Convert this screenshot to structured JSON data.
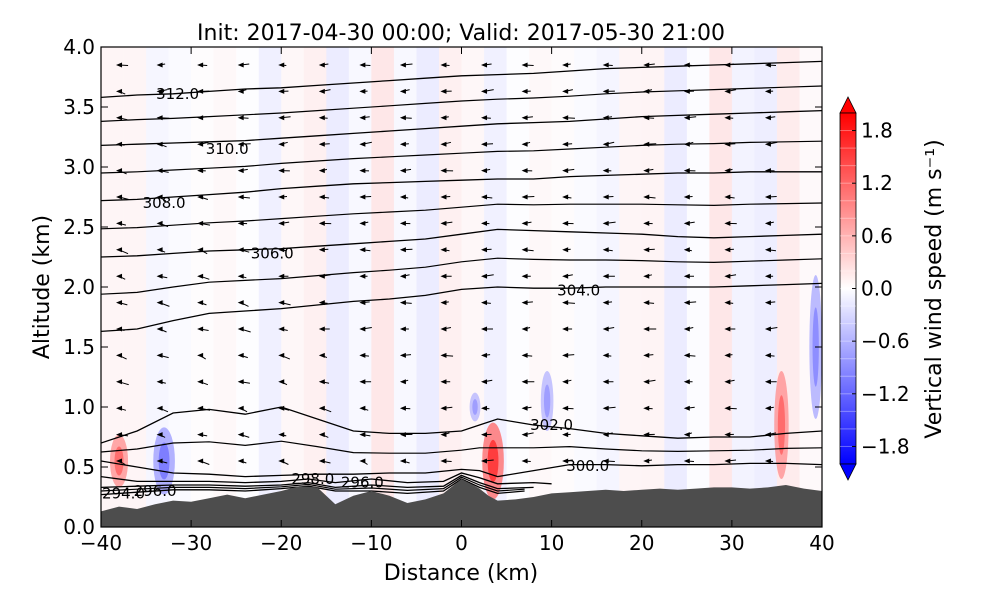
{
  "chart_data": {
    "type": "contour-cross-section",
    "title": "Init: 2017-04-30 00:00; Valid: 2017-05-30 21:00",
    "xlabel": "Distance (km)",
    "ylabel": "Altitude (km)",
    "xlim": [
      -40,
      40
    ],
    "ylim": [
      0.0,
      4.0
    ],
    "xticks": [
      -40,
      -30,
      -20,
      -10,
      0,
      10,
      20,
      30,
      40
    ],
    "xtick_labels": [
      "−40",
      "−30",
      "−20",
      "−10",
      "0",
      "10",
      "20",
      "30",
      "40"
    ],
    "yticks": [
      0.0,
      0.5,
      1.0,
      1.5,
      2.0,
      2.5,
      3.0,
      3.5,
      4.0
    ],
    "ytick_labels": [
      "0.0",
      "0.5",
      "1.0",
      "1.5",
      "2.0",
      "2.5",
      "3.0",
      "3.5",
      "4.0"
    ],
    "colorbar": {
      "label": "Vertical wind speed (m s⁻¹)",
      "range": [
        -2.0,
        2.0
      ],
      "ticks": [
        1.8,
        1.2,
        0.6,
        0.0,
        -0.6,
        -1.2,
        -1.8
      ],
      "tick_labels": [
        "1.8",
        "1.2",
        "0.6",
        "0.0",
        "−0.6",
        "−1.2",
        "−1.8"
      ],
      "colormap": "bwr",
      "extend": "both",
      "low_color": "#0000ff",
      "mid_color": "#ffffff",
      "high_color": "#ff0000"
    },
    "terrain": {
      "color": "#4d4d4d",
      "x": [
        -40,
        -38,
        -36,
        -34,
        -32,
        -30,
        -28,
        -26,
        -24,
        -22,
        -20,
        -18,
        -16,
        -14,
        -12,
        -10,
        -8,
        -6,
        -4,
        -2,
        0,
        1,
        2,
        3,
        4,
        6,
        8,
        10,
        12,
        14,
        16,
        18,
        20,
        22,
        24,
        26,
        28,
        30,
        32,
        34,
        36,
        38,
        40
      ],
      "altitude": [
        0.13,
        0.17,
        0.15,
        0.19,
        0.22,
        0.21,
        0.24,
        0.27,
        0.24,
        0.27,
        0.3,
        0.34,
        0.33,
        0.19,
        0.26,
        0.3,
        0.26,
        0.2,
        0.23,
        0.28,
        0.4,
        0.36,
        0.32,
        0.26,
        0.22,
        0.23,
        0.25,
        0.28,
        0.29,
        0.3,
        0.31,
        0.3,
        0.31,
        0.32,
        0.31,
        0.32,
        0.33,
        0.33,
        0.32,
        0.33,
        0.35,
        0.32,
        0.3
      ]
    },
    "theta_contours": [
      {
        "level": 294.0,
        "label": "294.0",
        "x": [
          -40,
          -36,
          -32,
          -28,
          -24,
          -20,
          -17,
          -14,
          -10,
          -6,
          -2,
          0,
          2,
          4,
          7
        ],
        "altitude": [
          0.27,
          0.29,
          0.31,
          0.31,
          0.3,
          0.32,
          0.34,
          0.3,
          0.3,
          0.28,
          0.3,
          0.4,
          0.33,
          0.28,
          0.3
        ]
      },
      {
        "level": 296.0,
        "label": "296.0",
        "x": [
          -40,
          -36,
          -32,
          -28,
          -24,
          -20,
          -17,
          -14,
          -10,
          -6,
          -2,
          0,
          2,
          4,
          8
        ],
        "altitude": [
          0.33,
          0.34,
          0.35,
          0.35,
          0.34,
          0.35,
          0.37,
          0.33,
          0.35,
          0.33,
          0.34,
          0.43,
          0.37,
          0.32,
          0.33
        ]
      },
      {
        "level": 298.0,
        "label": "298.0",
        "x": [
          -40,
          -36,
          -32,
          -28,
          -24,
          -20,
          -17,
          -14,
          -10,
          -6,
          -2,
          0,
          2,
          4,
          8,
          10
        ],
        "altitude": [
          0.42,
          0.38,
          0.38,
          0.38,
          0.37,
          0.38,
          0.4,
          0.37,
          0.4,
          0.37,
          0.38,
          0.45,
          0.41,
          0.36,
          0.37,
          0.36
        ]
      },
      {
        "level": 300.0,
        "label": "300.0",
        "x": [
          -40,
          -36,
          -32,
          -28,
          -24,
          -20,
          -16,
          -12,
          -8,
          -4,
          0,
          2,
          4,
          8,
          12,
          16,
          20,
          24,
          28,
          32,
          36,
          40
        ],
        "altitude": [
          0.55,
          0.5,
          0.45,
          0.44,
          0.42,
          0.43,
          0.44,
          0.44,
          0.45,
          0.45,
          0.48,
          0.47,
          0.42,
          0.47,
          0.52,
          0.52,
          0.51,
          0.52,
          0.52,
          0.53,
          0.53,
          0.52
        ]
      },
      {
        "level": 302.0,
        "label": "302.0",
        "x": [
          -40,
          -36,
          -32,
          -28,
          -24,
          -20,
          -16,
          -12,
          -8,
          -4,
          0,
          2,
          4,
          8,
          12,
          16,
          20,
          24,
          28,
          32,
          36,
          40
        ],
        "altitude": [
          0.7,
          0.8,
          0.95,
          0.98,
          0.94,
          1.0,
          0.9,
          0.8,
          0.78,
          0.78,
          0.8,
          0.85,
          0.9,
          0.85,
          0.82,
          0.78,
          0.76,
          0.74,
          0.75,
          0.75,
          0.78,
          0.8
        ]
      },
      {
        "level": 304.0,
        "label": "304.0",
        "x": [
          -40,
          -36,
          -32,
          -28,
          -24,
          -20,
          -16,
          -12,
          -8,
          -4,
          0,
          4,
          8,
          12,
          16,
          20,
          24,
          28,
          32,
          36,
          40
        ],
        "altitude": [
          1.63,
          1.65,
          1.72,
          1.78,
          1.8,
          1.82,
          1.85,
          1.88,
          1.9,
          1.93,
          1.98,
          2.0,
          1.99,
          1.99,
          2.0,
          2.0,
          2.0,
          2.0,
          2.01,
          2.02,
          2.03
        ]
      },
      {
        "level": 306.0,
        "label": "306.0",
        "x": [
          -40,
          -36,
          -32,
          -28,
          -24,
          -20,
          -16,
          -12,
          -8,
          -4,
          0,
          4,
          8,
          12,
          16,
          20,
          24,
          28,
          32,
          36,
          40
        ],
        "altitude": [
          2.25,
          2.26,
          2.28,
          2.3,
          2.31,
          2.32,
          2.34,
          2.36,
          2.38,
          2.4,
          2.44,
          2.48,
          2.47,
          2.46,
          2.45,
          2.44,
          2.42,
          2.41,
          2.42,
          2.43,
          2.44
        ]
      },
      {
        "level": 308.0,
        "label": "308.0",
        "x": [
          -40,
          -36,
          -32,
          -28,
          -24,
          -20,
          -16,
          -12,
          -8,
          -4,
          0,
          4,
          8,
          12,
          16,
          20,
          24,
          28,
          32,
          36,
          40
        ],
        "altitude": [
          2.72,
          2.73,
          2.75,
          2.77,
          2.79,
          2.82,
          2.84,
          2.86,
          2.87,
          2.88,
          2.89,
          2.9,
          2.9,
          2.92,
          2.93,
          2.94,
          2.95,
          2.95,
          2.96,
          2.96,
          2.96
        ]
      },
      {
        "level": 310.0,
        "label": "310.0",
        "x": [
          -40,
          -36,
          -32,
          -28,
          -24,
          -20,
          -16,
          -12,
          -8,
          -4,
          0,
          4,
          8,
          12,
          16,
          20,
          24,
          28,
          32,
          36,
          40
        ],
        "altitude": [
          3.18,
          3.19,
          3.2,
          3.21,
          3.22,
          3.24,
          3.26,
          3.28,
          3.3,
          3.32,
          3.34,
          3.36,
          3.37,
          3.38,
          3.4,
          3.42,
          3.43,
          3.44,
          3.45,
          3.46,
          3.47
        ]
      },
      {
        "level": 312.0,
        "label": "312.0",
        "x": [
          -40,
          -36,
          -32,
          -28,
          -24,
          -20,
          -16,
          -12,
          -8,
          -4,
          0,
          4,
          8,
          12,
          16,
          20,
          24,
          28,
          32,
          36,
          40
        ],
        "altitude": [
          3.58,
          3.6,
          3.61,
          3.63,
          3.65,
          3.66,
          3.68,
          3.7,
          3.72,
          3.74,
          3.76,
          3.77,
          3.78,
          3.8,
          3.82,
          3.83,
          3.84,
          3.85,
          3.86,
          3.87,
          3.88
        ]
      }
    ],
    "contour_labels": [
      {
        "text": "312.0",
        "x": -31.5,
        "altitude": 3.61
      },
      {
        "text": "310.0",
        "x": -26,
        "altitude": 3.15
      },
      {
        "text": "308.0",
        "x": -33,
        "altitude": 2.7
      },
      {
        "text": "306.0",
        "x": -21,
        "altitude": 2.28
      },
      {
        "text": "304.0",
        "x": 13,
        "altitude": 1.97
      },
      {
        "text": "302.0",
        "x": 10,
        "altitude": 0.85
      },
      {
        "text": "300.0",
        "x": 14,
        "altitude": 0.51
      },
      {
        "text": "298.0",
        "x": -16.5,
        "altitude": 0.4
      },
      {
        "text": "296.0",
        "x": -11,
        "altitude": 0.37
      },
      {
        "text": "296.0",
        "x": -34,
        "altitude": 0.3
      },
      {
        "text": "294.0",
        "x": -37.5,
        "altitude": 0.28
      }
    ],
    "vertical_wind_patches": [
      {
        "x": -33,
        "altitude": 0.55,
        "rx": 1.2,
        "ry": 0.28,
        "w": -0.8
      },
      {
        "x": -38,
        "altitude": 0.55,
        "rx": 1.0,
        "ry": 0.22,
        "w": 0.9
      },
      {
        "x": 3.5,
        "altitude": 0.55,
        "rx": 1.2,
        "ry": 0.32,
        "w": 1.2
      },
      {
        "x": 9.5,
        "altitude": 1.05,
        "rx": 0.7,
        "ry": 0.25,
        "w": -0.6
      },
      {
        "x": 35.5,
        "altitude": 0.85,
        "rx": 0.8,
        "ry": 0.45,
        "w": 0.9
      },
      {
        "x": 39.3,
        "altitude": 1.5,
        "rx": 0.7,
        "ry": 0.6,
        "w": -0.7
      },
      {
        "x": 1.5,
        "altitude": 1.0,
        "rx": 0.6,
        "ry": 0.12,
        "w": -0.6
      }
    ],
    "wind_vectors_note": "small black arrows pointing mostly westward (leftward) across the section"
  }
}
